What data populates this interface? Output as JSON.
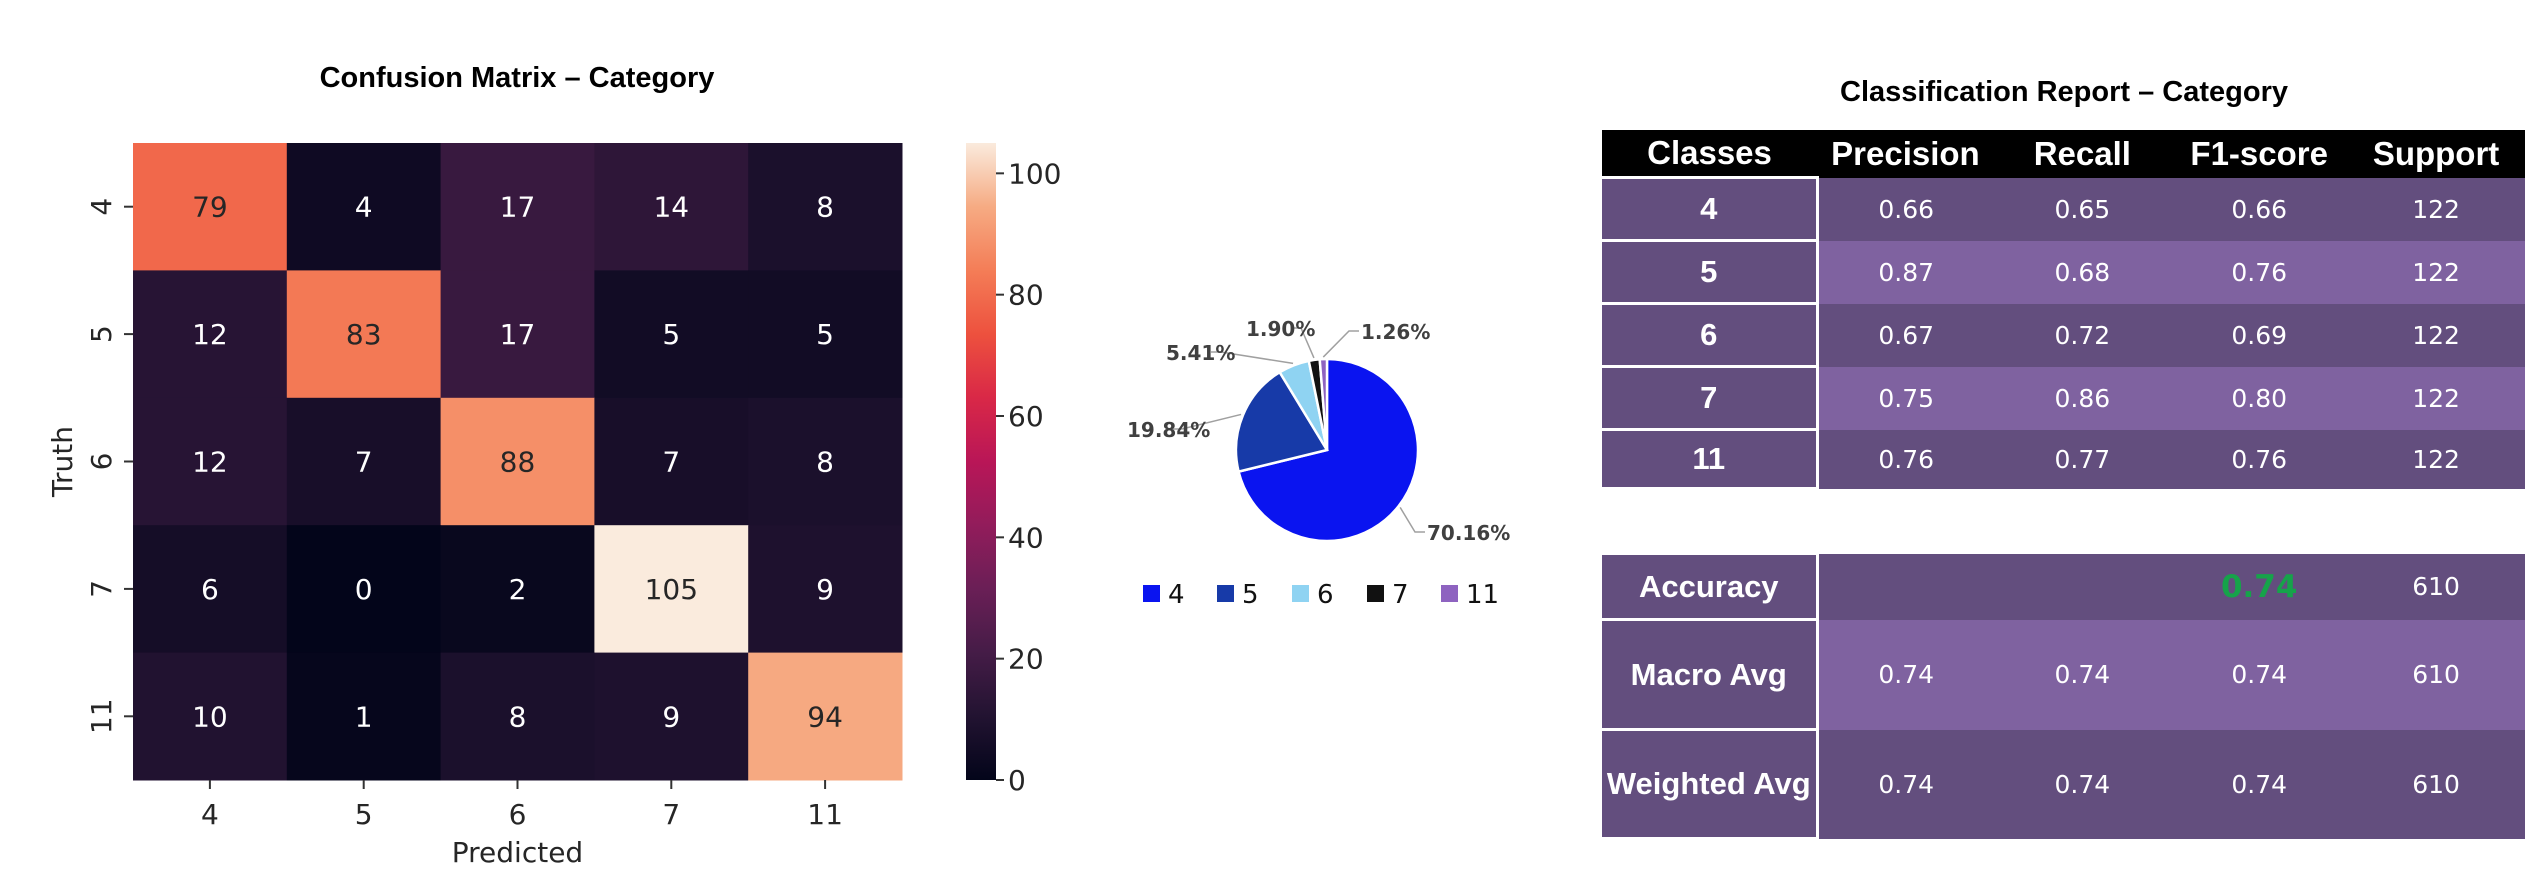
{
  "chart_data": [
    {
      "type": "heatmap",
      "title": "Confusion Matrix – Category",
      "xlabel": "Predicted",
      "ylabel": "Truth",
      "x_categories": [
        "4",
        "5",
        "6",
        "7",
        "11"
      ],
      "y_categories": [
        "4",
        "5",
        "6",
        "7",
        "11"
      ],
      "values": [
        [
          79,
          4,
          17,
          14,
          8
        ],
        [
          12,
          83,
          17,
          5,
          5
        ],
        [
          12,
          7,
          88,
          7,
          8
        ],
        [
          6,
          0,
          2,
          105,
          9
        ],
        [
          10,
          1,
          8,
          9,
          94
        ]
      ],
      "colormap": "rocket",
      "colorbar": {
        "range": [
          0,
          105
        ],
        "ticks": [
          0,
          20,
          40,
          60,
          80,
          100
        ]
      }
    },
    {
      "type": "pie",
      "categories": [
        "4",
        "5",
        "6",
        "7",
        "11"
      ],
      "values": [
        70.16,
        19.84,
        5.41,
        1.9,
        1.26
      ],
      "labels": [
        "70.16%",
        "19.84%",
        "5.41%",
        "1.90%",
        "1.26%"
      ],
      "colors": [
        "#0a14f0",
        "#173aa8",
        "#8fd3f2",
        "#111111",
        "#8e63c0"
      ],
      "legend": "bottom"
    },
    {
      "type": "table",
      "title": "Classification Report – Category",
      "columns": [
        "Classes",
        "Precision",
        "Recall",
        "F1-score",
        "Support"
      ],
      "rows": [
        [
          "4",
          "0.66",
          "0.65",
          "0.66",
          "122"
        ],
        [
          "5",
          "0.87",
          "0.68",
          "0.76",
          "122"
        ],
        [
          "6",
          "0.67",
          "0.72",
          "0.69",
          "122"
        ],
        [
          "7",
          "0.75",
          "0.86",
          "0.80",
          "122"
        ],
        [
          "11",
          "0.76",
          "0.77",
          "0.76",
          "122"
        ]
      ],
      "summary": {
        "accuracy": {
          "label": "Accuracy",
          "f1": "0.74",
          "support": "610",
          "highlight_color": "#16a34a"
        },
        "macro": {
          "label": "Macro Avg",
          "precision": "0.74",
          "recall": "0.74",
          "f1": "0.74",
          "support": "610"
        },
        "weighted": {
          "label": "Weighted Avg",
          "precision": "0.74",
          "recall": "0.74",
          "f1": "0.74",
          "support": "610"
        }
      }
    }
  ]
}
